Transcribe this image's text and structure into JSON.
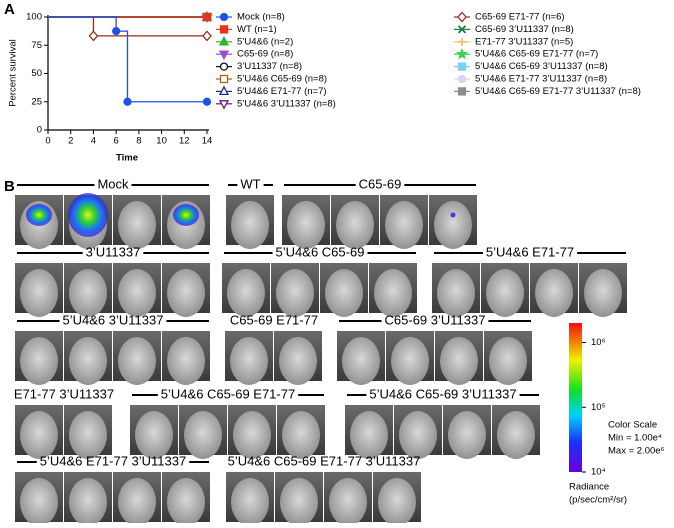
{
  "chart_data": {
    "type": "line",
    "panel_label": "A",
    "x_label": "Time",
    "y_label": "Percent survival",
    "xlim": [
      0,
      14
    ],
    "xticks": [
      0,
      2,
      4,
      6,
      8,
      10,
      12,
      14
    ],
    "ylim": [
      0,
      100
    ],
    "yticks": [
      0,
      25,
      50,
      75,
      100
    ],
    "series": [
      {
        "name": "Mock (n=8)",
        "color": "#2150e8",
        "marker": "circle",
        "filled": true,
        "x": [
          0,
          6,
          7,
          14
        ],
        "values": [
          100,
          87.5,
          25,
          25
        ]
      },
      {
        "name": "WT (n=1)",
        "color": "#e8321e",
        "marker": "square",
        "filled": true,
        "x": [
          0,
          14
        ],
        "values": [
          100,
          100
        ]
      },
      {
        "name": "5’U4&6 (n=2)",
        "color": "#2fb52f",
        "marker": "triangle",
        "filled": true,
        "x": [
          0,
          14
        ],
        "values": [
          100,
          100
        ]
      },
      {
        "name": "C65-69 (n=8)",
        "color": "#9a4fd0",
        "marker": "triangle-down",
        "filled": true,
        "x": [
          0,
          14
        ],
        "values": [
          100,
          100
        ]
      },
      {
        "name": "3’U11337 (n=8)",
        "color": "#111111",
        "marker": "circle",
        "filled": false,
        "x": [
          0,
          14
        ],
        "values": [
          100,
          100
        ]
      },
      {
        "name": "5’U4&6 C65-69 (n=8)",
        "color": "#a8641e",
        "marker": "square",
        "filled": false,
        "x": [
          0,
          14
        ],
        "values": [
          100,
          100
        ]
      },
      {
        "name": "5’U4&6 E71-77 (n=7)",
        "color": "#1c2a8a",
        "marker": "triangle",
        "filled": false,
        "x": [
          0,
          14
        ],
        "values": [
          100,
          100
        ]
      },
      {
        "name": "5’U4&6 3’U11337 (n=8)",
        "color": "#6a1a6a",
        "marker": "triangle-down",
        "filled": false,
        "x": [
          0,
          14
        ],
        "values": [
          100,
          100
        ]
      },
      {
        "name": "C65-69 E71-77 (n=6)",
        "color": "#9a2a1a",
        "marker": "diamond",
        "filled": false,
        "x": [
          0,
          4,
          14
        ],
        "values": [
          100,
          83.3,
          83.3
        ]
      },
      {
        "name": "C65-69 3’U11337 (n=8)",
        "color": "#1e7a4a",
        "marker": "x",
        "filled": false,
        "x": [
          0,
          14
        ],
        "values": [
          100,
          100
        ]
      },
      {
        "name": "E71-77 3’U11337 (n=5)",
        "color": "#f2c46a",
        "marker": "plus",
        "filled": false,
        "x": [
          0,
          14
        ],
        "values": [
          100,
          100
        ]
      },
      {
        "name": "5’U4&6 C65-69 E71-77 (n=7)",
        "color": "#3fd24a",
        "marker": "star",
        "filled": true,
        "x": [
          0,
          14
        ],
        "values": [
          100,
          100
        ]
      },
      {
        "name": "5’U4&6 C65-69 3’U11337 (n=8)",
        "color": "#7fd0f0",
        "marker": "square",
        "filled": true,
        "x": [
          0,
          14
        ],
        "values": [
          100,
          100
        ]
      },
      {
        "name": "5’U4&6 E71-77 3’U11337 (n=8)",
        "color": "#d6d6f4",
        "marker": "circle",
        "filled": true,
        "x": [
          0,
          14
        ],
        "values": [
          100,
          100
        ]
      },
      {
        "name": "5’U4&6 C65-69 E71-77 3’U11337 (n=8)",
        "color": "#8c8c8c",
        "marker": "square",
        "filled": true,
        "x": [
          0,
          14
        ],
        "values": [
          100,
          100
        ]
      }
    ]
  },
  "panel_b": {
    "panel_label": "B",
    "groups": [
      "Mock",
      "WT",
      "C65-69",
      "3’U11337",
      "5’U4&6 C65-69",
      "5’U4&6 E71-77",
      "5’U4&6 3’U11337",
      "C65-69 E71-77",
      "C65-69 3’U11337",
      "E71-77 3’U11337",
      "5’U4&6 C65-69 E71-77",
      "5’U4&6 C65-69 3’U11337",
      "5’U4&6 E71-77 3’U11337",
      "5’U4&6 C65-69 E71-77 3’U11337"
    ],
    "colorbar": {
      "lim": [
        10000,
        2000000
      ],
      "ticks": [
        {
          "value": 1000000,
          "label": "10⁶"
        },
        {
          "value": 100000,
          "label": "10⁵"
        },
        {
          "value": 10000,
          "label": "10⁴"
        }
      ],
      "title": "Color Scale",
      "min_label": "Min = 1.00e⁴",
      "max_label": "Max = 2.00e⁶",
      "unit_title": "Radiance",
      "unit": "(p/sec/cm²/sr)"
    }
  }
}
